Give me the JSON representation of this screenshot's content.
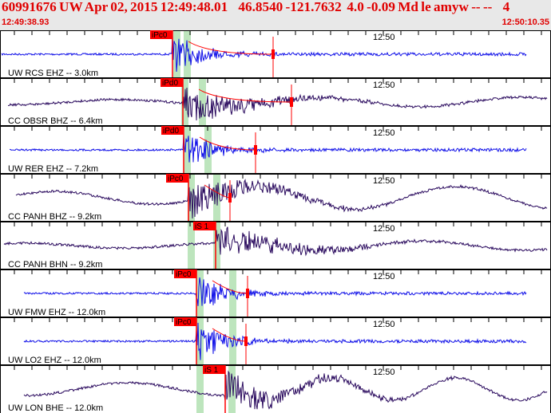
{
  "header": {
    "title": "60991676 UW Apr 02, 2015 12:49:48.01    46.8540 -121.7632  4.0 -0.09 Md le amyw -- --    4",
    "start_time": "12:49:38.93",
    "end_time": "12:50:10.35"
  },
  "colors": {
    "header_text": "#e00000",
    "pick": "#ff0000",
    "short_period": "#1010e8",
    "broadband": "#2a0a5e",
    "window": "#bde5bd"
  },
  "traces": [
    {
      "label": "UW RCS EHZ -- 3.0km",
      "pick": "iPc0",
      "minute": "12:50",
      "type": "short_period"
    },
    {
      "label": "CC OBSR BHZ -- 6.4km",
      "pick": "iPd0",
      "minute": "12:50",
      "type": "broadband"
    },
    {
      "label": "UW RER EHZ -- 7.2km",
      "pick": "iPd0",
      "minute": "12:50",
      "type": "short_period"
    },
    {
      "label": "CC PANH BHZ -- 9.2km",
      "pick": "iPc0",
      "minute": "12:50",
      "type": "broadband"
    },
    {
      "label": "CC PANH BHN -- 9.2km",
      "pick": "iS 1",
      "minute": "12:50",
      "type": "broadband"
    },
    {
      "label": "UW FMW EHZ -- 12.0km",
      "pick": "iPc0",
      "minute": "12:50",
      "type": "short_period"
    },
    {
      "label": "UW LO2 EHZ -- 12.0km",
      "pick": "iPc0",
      "minute": "12:50",
      "type": "short_period"
    },
    {
      "label": "UW LON BHE -- 12.0km",
      "pick": "iS 1",
      "minute": "12:50",
      "type": "broadband"
    }
  ]
}
